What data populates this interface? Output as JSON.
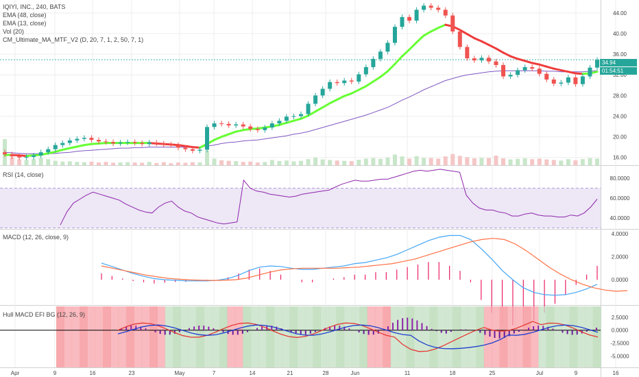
{
  "chart_data": {
    "type": "candlestick",
    "symbol": "IQIYI, INC., 240, BATS",
    "x_axis": {
      "ticks": [
        "Apr",
        "9",
        "16",
        "23",
        "May",
        "7",
        "14",
        "21",
        "28",
        "Jun",
        "11",
        "18",
        "25",
        "Jul",
        "9",
        "16"
      ]
    },
    "main_pane": {
      "legend": [
        "IQIYI, INC., 240, BATS",
        "EMA (48, close)",
        "EMA (13, close)",
        "Vol (20)",
        "CM_Ultimate_MA_MTF_V2 (D, 20, 7, 1, 2, 50, 7, 1)"
      ],
      "y_ticks": [
        "44.00",
        "40.00",
        "36.00",
        "32.00",
        "28.00",
        "24.00",
        "20.00",
        "16.00"
      ],
      "ylim": [
        14.5,
        46.5
      ],
      "last_price": "34.94",
      "countdown": "01:54:51",
      "closes": [
        16.6,
        16.2,
        16.0,
        16.1,
        16.4,
        17.0,
        17.6,
        18.4,
        18.8,
        19.3,
        19.6,
        19.8,
        19.4,
        19.1,
        19.0,
        18.7,
        18.9,
        19.0,
        18.8,
        18.6,
        18.9,
        18.7,
        18.5,
        18.4,
        17.9,
        17.6,
        17.3,
        17.5,
        21.9,
        22.6,
        22.5,
        22.2,
        22.4,
        22.0,
        21.5,
        21.3,
        21.8,
        22.6,
        23.1,
        23.9,
        24.0,
        24.4,
        26.4,
        28.0,
        29.3,
        30.6,
        30.4,
        30.9,
        30.7,
        32.1,
        33.5,
        35.1,
        36.5,
        38.2,
        41.3,
        43.2,
        42.5,
        44.6,
        45.4,
        45.0,
        44.6,
        43.5,
        40.4,
        37.4,
        35.2,
        34.8,
        35.3,
        34.6,
        33.9,
        31.7,
        32.0,
        32.9,
        33.5,
        33.2,
        32.2,
        31.1,
        30.3,
        30.5,
        31.5,
        30.2,
        31.7,
        33.4,
        34.9
      ],
      "ema13": [
        16.5,
        16.5,
        16.4,
        16.3,
        16.4,
        16.5,
        16.8,
        17.1,
        17.5,
        17.8,
        18.1,
        18.4,
        18.6,
        18.7,
        18.8,
        18.8,
        18.8,
        18.8,
        18.8,
        18.8,
        18.8,
        18.7,
        18.6,
        18.5,
        18.4,
        18.2,
        18.0,
        17.9,
        18.6,
        19.4,
        20.0,
        20.5,
        21.0,
        21.3,
        21.5,
        21.6,
        21.8,
        22.0,
        22.3,
        22.7,
        23.1,
        23.5,
        24.1,
        24.9,
        25.7,
        26.5,
        27.2,
        27.9,
        28.4,
        29.1,
        29.8,
        30.7,
        31.6,
        32.7,
        34.1,
        35.6,
        36.9,
        38.3,
        39.6,
        40.4,
        41.1,
        41.7,
        41.4,
        40.7,
        39.9,
        39.1,
        38.5,
        37.8,
        37.1,
        36.3,
        35.6,
        35.1,
        34.7,
        34.3,
        34.0,
        33.6,
        33.2,
        32.9,
        32.6,
        32.3,
        32.2,
        32.3,
        32.6
      ],
      "ema48": [
        17.0,
        16.9,
        16.8,
        16.7,
        16.7,
        16.7,
        16.7,
        16.8,
        16.9,
        17.0,
        17.2,
        17.3,
        17.4,
        17.5,
        17.6,
        17.7,
        17.8,
        17.8,
        17.9,
        17.9,
        18.0,
        18.0,
        18.0,
        18.0,
        18.0,
        18.0,
        18.0,
        18.0,
        18.2,
        18.4,
        18.7,
        18.9,
        19.0,
        19.2,
        19.3,
        19.4,
        19.6,
        19.8,
        20.0,
        20.2,
        20.5,
        20.7,
        21.0,
        21.4,
        21.8,
        22.2,
        22.6,
        23.0,
        23.4,
        23.8,
        24.2,
        24.7,
        25.2,
        25.7,
        26.4,
        27.1,
        27.7,
        28.4,
        29.1,
        29.7,
        30.3,
        30.9,
        31.3,
        31.7,
        32.0,
        32.2,
        32.4,
        32.6,
        32.7,
        32.8,
        32.8,
        32.8,
        32.8,
        32.8,
        32.8,
        32.7,
        32.7,
        32.6,
        32.6,
        32.6,
        32.6,
        32.7,
        32.8
      ],
      "volume": [
        9.5,
        2.8,
        2.1,
        1.9,
        2.2,
        2.6,
        2.2,
        1.6,
        1.3,
        1.4,
        1.2,
        1.1,
        1.3,
        1.0,
        1.2,
        0.9,
        1.0,
        1.1,
        1.0,
        0.9,
        1.2,
        0.8,
        1.1,
        0.7,
        1.0,
        0.9,
        1.1,
        1.0,
        5.3,
        2.4,
        1.8,
        1.6,
        1.5,
        1.2,
        1.3,
        1.0,
        1.2,
        1.9,
        1.5,
        1.7,
        1.4,
        1.6,
        2.2,
        2.8,
        2.1,
        1.9,
        1.7,
        1.6,
        1.5,
        2.0,
        2.4,
        2.6,
        2.3,
        2.8,
        3.9,
        3.2,
        2.4,
        3.3,
        2.7,
        2.6,
        2.4,
        3.2,
        4.1,
        3.4,
        2.9,
        2.5,
        2.7,
        2.6,
        3.5,
        2.5,
        2.1,
        2.3,
        2.5,
        2.2,
        2.4,
        2.1,
        1.9,
        1.7,
        2.2,
        1.8,
        2.2,
        2.6,
        2.4
      ]
    },
    "rsi_pane": {
      "legend": "RSI (14, close)",
      "y_ticks": [
        "80.0000",
        "60.0000",
        "40.0000"
      ],
      "ylim": [
        29,
        91
      ],
      "bands": [
        70,
        30
      ],
      "values": [
        33,
        46,
        55,
        59,
        63,
        66,
        64,
        62,
        60,
        58,
        54,
        51,
        48,
        46,
        45,
        51,
        55,
        57,
        51,
        47,
        45,
        41,
        39,
        37,
        35,
        34,
        35,
        36,
        78,
        70,
        67,
        66,
        64,
        63,
        62,
        61,
        62,
        64,
        65,
        66,
        67,
        68,
        71,
        74,
        76,
        78,
        77,
        77,
        78,
        79,
        79,
        81,
        83,
        85,
        87,
        88,
        87,
        88,
        89,
        88,
        87,
        86,
        63,
        55,
        50,
        48,
        48,
        46,
        45,
        42,
        42,
        44,
        45,
        43,
        42,
        42,
        41,
        41,
        43,
        42,
        45,
        51,
        59
      ]
    },
    "macd_pane": {
      "legend": "MACD (12, 26, close, 9)",
      "y_ticks": [
        "4.0000",
        "2.0000",
        "0.0000"
      ],
      "ylim": [
        -2.2,
        4.3
      ],
      "macd": [
        1.45,
        1.15,
        0.85,
        0.55,
        0.3,
        0.1,
        0.0,
        -0.05,
        -0.1,
        -0.1,
        -0.1,
        -0.05,
        0.1,
        0.4,
        0.8,
        1.1,
        1.2,
        1.15,
        1.0,
        0.9,
        0.9,
        1.0,
        1.1,
        1.2,
        1.4,
        1.5,
        1.7,
        1.9,
        2.2,
        2.6,
        3.0,
        3.4,
        3.7,
        3.85,
        3.85,
        3.5,
        2.7,
        1.8,
        0.8,
        0.0,
        -0.7,
        -1.1,
        -1.3,
        -1.35,
        -1.3,
        -1.1,
        -0.8,
        -0.4
      ],
      "signal": [
        1.2,
        1.0,
        0.8,
        0.6,
        0.4,
        0.25,
        0.12,
        0.04,
        -0.02,
        -0.05,
        -0.06,
        -0.05,
        0.0,
        0.15,
        0.4,
        0.65,
        0.85,
        0.95,
        1.0,
        1.0,
        1.0,
        1.0,
        1.05,
        1.1,
        1.2,
        1.3,
        1.4,
        1.6,
        1.8,
        2.1,
        2.4,
        2.7,
        3.0,
        3.3,
        3.5,
        3.6,
        3.5,
        3.1,
        2.5,
        1.8,
        1.1,
        0.5,
        0.0,
        -0.4,
        -0.7,
        -0.9,
        -1.0,
        -0.95
      ]
    },
    "hull_pane": {
      "legend": "Hull MACD EFI BG (12, 26, 9)",
      "y_ticks": [
        "2.5000",
        "0.0000",
        "-2.5000",
        "-5.0000"
      ],
      "ylim": [
        -7.2,
        4.6
      ],
      "background_colors": [
        "#f7a4a9",
        "#c3dfc1"
      ]
    }
  }
}
